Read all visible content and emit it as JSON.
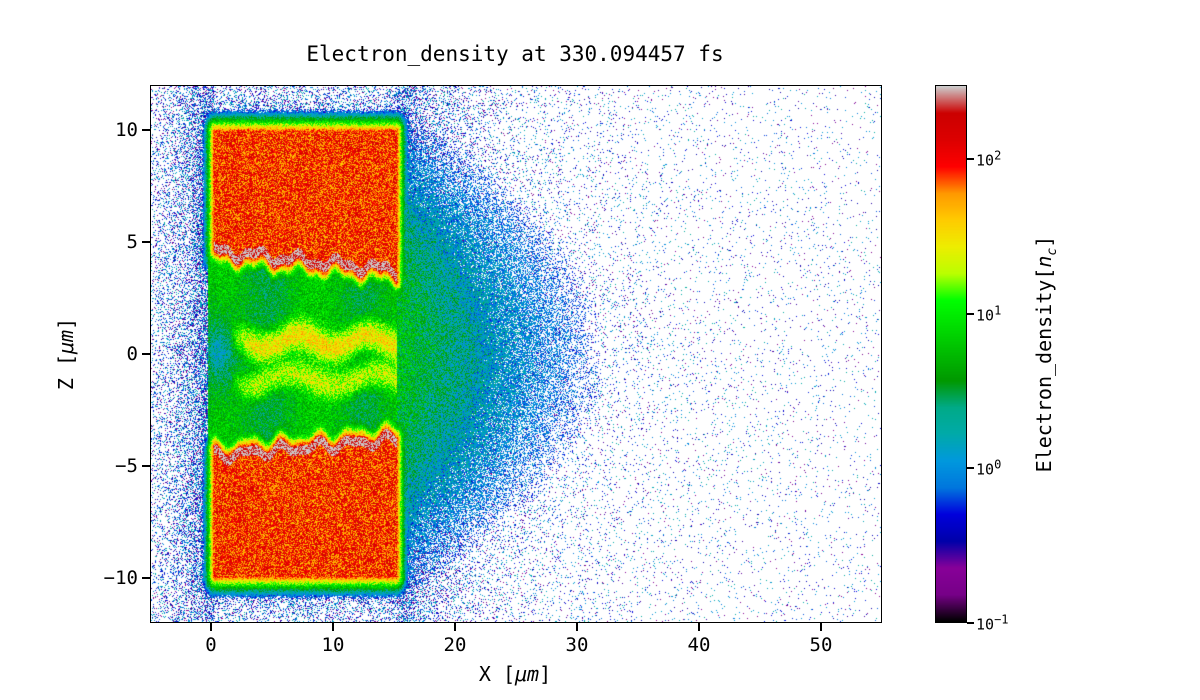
{
  "title": {
    "text": "Electron_density at 330.094457 fs"
  },
  "x_axis": {
    "label_prefix": "X [",
    "label_unit": "μm",
    "label_suffix": "]",
    "ticks": [
      "0",
      "10",
      "20",
      "30",
      "40",
      "50"
    ],
    "tick_values": [
      0,
      10,
      20,
      30,
      40,
      50
    ]
  },
  "y_axis": {
    "label_prefix": "Z [",
    "label_unit": "μm",
    "label_suffix": "]",
    "ticks": [
      "−10",
      "−5",
      "0",
      "5",
      "10"
    ],
    "tick_values": [
      -10,
      -5,
      0,
      5,
      10
    ]
  },
  "colorbar": {
    "label_prefix": "Electron_density[",
    "label_var": "n",
    "label_sub": "c",
    "label_suffix": "]",
    "tick_exponents": [
      "−1",
      "0",
      "1",
      "2"
    ],
    "tick_exp_values": [
      -1,
      0,
      1,
      2
    ]
  },
  "chart_data": {
    "type": "heatmap",
    "title": "Electron_density at 330.094457 fs",
    "xlabel": "X [μm]",
    "ylabel": "Z [μm]",
    "colorbar_label": "Electron_density[n_c]",
    "xlim": [
      -5,
      55
    ],
    "zlim": [
      -12,
      12
    ],
    "scale": "log",
    "vmin": 0.1,
    "vmax": 300,
    "colormap": "nipy_spectral",
    "colormap_stops": [
      [
        0.0,
        0,
        0,
        0
      ],
      [
        0.05,
        119,
        0,
        136
      ],
      [
        0.1,
        136,
        0,
        153
      ],
      [
        0.15,
        0,
        0,
        170
      ],
      [
        0.2,
        0,
        0,
        221
      ],
      [
        0.25,
        0,
        119,
        221
      ],
      [
        0.3,
        0,
        153,
        221
      ],
      [
        0.35,
        0,
        170,
        170
      ],
      [
        0.4,
        0,
        170,
        136
      ],
      [
        0.45,
        0,
        153,
        0
      ],
      [
        0.5,
        0,
        187,
        0
      ],
      [
        0.55,
        0,
        221,
        0
      ],
      [
        0.6,
        0,
        255,
        0
      ],
      [
        0.65,
        187,
        255,
        0
      ],
      [
        0.7,
        238,
        238,
        0
      ],
      [
        0.75,
        255,
        204,
        0
      ],
      [
        0.8,
        255,
        153,
        0
      ],
      [
        0.85,
        255,
        0,
        0
      ],
      [
        0.9,
        221,
        0,
        0
      ],
      [
        0.95,
        204,
        0,
        0
      ],
      [
        1.0,
        204,
        204,
        204
      ]
    ],
    "seed": 1337,
    "features": {
      "upper_slab": {
        "x": [
          0.2,
          15.2
        ],
        "z": [
          4.0,
          10.0
        ],
        "core_density": 90,
        "ridge_density": 230
      },
      "lower_slab": {
        "x": [
          0.2,
          15.2
        ],
        "z": [
          -10.0,
          -4.0
        ],
        "core_density": 90,
        "ridge_density": 230
      },
      "channel": {
        "x": [
          0,
          15.2
        ],
        "z": [
          -4,
          4
        ],
        "base_density": 5,
        "filament_density": 28
      },
      "plume": {
        "x_start": 15.2,
        "decay_length_x": 5.5,
        "z_sigma": 4.5,
        "peak_density": 5
      },
      "halo": {
        "near_probability": 0.55,
        "decay_length": 1.8
      },
      "left_band": {
        "probability": 0.25,
        "decay_length": 6
      },
      "right_scatter": {
        "probability": 0.5,
        "decay_length_x": 8
      },
      "baseline_scatter_probability": 0.022,
      "noise_value_range": [
        0.14,
        2.0
      ]
    }
  }
}
